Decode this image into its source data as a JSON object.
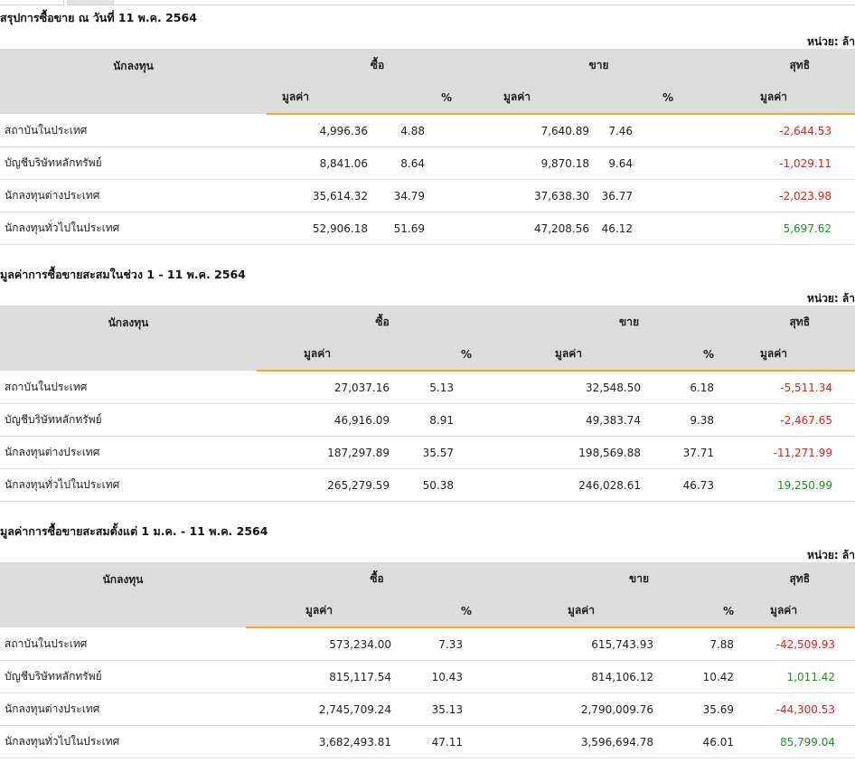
{
  "tabs": [
    "",
    ""
  ],
  "unit_label": "หน่วย: ล้า",
  "headers": {
    "investor": "นักลงทุน",
    "buy": "ซื้อ",
    "sell": "ขาย",
    "net": "สุทธิ",
    "value": "มูลค่า",
    "percent": "%"
  },
  "sections": [
    {
      "title": "สรุปการซื้อขาย ณ วันที่ 11 พ.ค. 2564",
      "rows": [
        {
          "name": "สถาบันในประเทศ",
          "buy_value": "4,996.36",
          "buy_pct": "4.88",
          "sell_value": "7,640.89",
          "sell_pct": "7.46",
          "net": "-2,644.53",
          "net_sign": "neg"
        },
        {
          "name": "บัญชีบริษัทหลักทรัพย์",
          "buy_value": "8,841.06",
          "buy_pct": "8.64",
          "sell_value": "9,870.18",
          "sell_pct": "9.64",
          "net": "-1,029.11",
          "net_sign": "neg"
        },
        {
          "name": "นักลงทุนต่างประเทศ",
          "buy_value": "35,614.32",
          "buy_pct": "34.79",
          "sell_value": "37,638.30",
          "sell_pct": "36.77",
          "net": "-2,023.98",
          "net_sign": "neg"
        },
        {
          "name": "นักลงทุนทั่วไปในประเทศ",
          "buy_value": "52,906.18",
          "buy_pct": "51.69",
          "sell_value": "47,208.56",
          "sell_pct": "46.12",
          "net": "5,697.62",
          "net_sign": "pos"
        }
      ]
    },
    {
      "title": "มูลค่าการซื้อขายสะสมในช่วง 1 - 11 พ.ค. 2564",
      "rows": [
        {
          "name": "สถาบันในประเทศ",
          "buy_value": "27,037.16",
          "buy_pct": "5.13",
          "sell_value": "32,548.50",
          "sell_pct": "6.18",
          "net": "-5,511.34",
          "net_sign": "neg"
        },
        {
          "name": "บัญชีบริษัทหลักทรัพย์",
          "buy_value": "46,916.09",
          "buy_pct": "8.91",
          "sell_value": "49,383.74",
          "sell_pct": "9.38",
          "net": "-2,467.65",
          "net_sign": "neg"
        },
        {
          "name": "นักลงทุนต่างประเทศ",
          "buy_value": "187,297.89",
          "buy_pct": "35.57",
          "sell_value": "198,569.88",
          "sell_pct": "37.71",
          "net": "-11,271.99",
          "net_sign": "neg"
        },
        {
          "name": "นักลงทุนทั่วไปในประเทศ",
          "buy_value": "265,279.59",
          "buy_pct": "50.38",
          "sell_value": "246,028.61",
          "sell_pct": "46.73",
          "net": "19,250.99",
          "net_sign": "pos"
        }
      ]
    },
    {
      "title": "มูลค่าการซื้อขายสะสมตั้งแต่ 1 ม.ค. - 11 พ.ค. 2564",
      "rows": [
        {
          "name": "สถาบันในประเทศ",
          "buy_value": "573,234.00",
          "buy_pct": "7.33",
          "sell_value": "615,743.93",
          "sell_pct": "7.88",
          "net": "-42,509.93",
          "net_sign": "neg"
        },
        {
          "name": "บัญชีบริษัทหลักทรัพย์",
          "buy_value": "815,117.54",
          "buy_pct": "10.43",
          "sell_value": "814,106.12",
          "sell_pct": "10.42",
          "net": "1,011.42",
          "net_sign": "pos"
        },
        {
          "name": "นักลงทุนต่างประเทศ",
          "buy_value": "2,745,709.24",
          "buy_pct": "35.13",
          "sell_value": "2,790,009.76",
          "sell_pct": "35.69",
          "net": "-44,300.53",
          "net_sign": "neg"
        },
        {
          "name": "นักลงทุนทั่วไปในประเทศ",
          "buy_value": "3,682,493.81",
          "buy_pct": "47.11",
          "sell_value": "3,596,694.78",
          "sell_pct": "46.01",
          "net": "85,799.04",
          "net_sign": "pos"
        }
      ]
    }
  ],
  "colors": {
    "negative": "#e02020",
    "positive": "#1f8f1f",
    "header_bg": "#dcdcdc",
    "accent_underline": "#f4a92a"
  }
}
